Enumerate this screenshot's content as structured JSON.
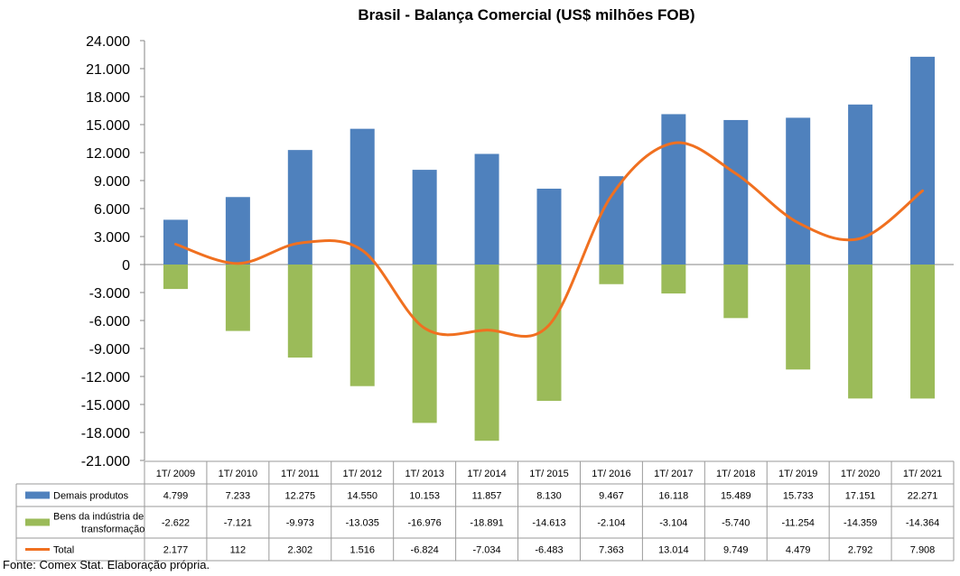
{
  "chart_data": {
    "type": "bar",
    "title": "Brasil - Balança Comercial (US$ milhões FOB)",
    "categories": [
      "1T/ 2009",
      "1T/ 2010",
      "1T/ 2011",
      "1T/ 2012",
      "1T/ 2013",
      "1T/ 2014",
      "1T/ 2015",
      "1T/ 2016",
      "1T/ 2017",
      "1T/ 2018",
      "1T/ 2019",
      "1T/ 2020",
      "1T/ 2021"
    ],
    "yticks": [
      "24.000",
      "21.000",
      "18.000",
      "15.000",
      "12.000",
      "9.000",
      "6.000",
      "3.000",
      "0",
      "-3.000",
      "-6.000",
      "-9.000",
      "-12.000",
      "-15.000",
      "-18.000",
      "-21.000"
    ],
    "ylim": [
      -21000,
      24000
    ],
    "grid": false,
    "series": [
      {
        "name": "Demais produtos",
        "kind": "bar",
        "color": "#4f81bd",
        "values": [
          4799,
          7233,
          12275,
          14550,
          10153,
          11857,
          8130,
          9467,
          16118,
          15489,
          15733,
          17151,
          22271
        ],
        "labels": [
          "4.799",
          "7.233",
          "12.275",
          "14.550",
          "10.153",
          "11.857",
          "8.130",
          "9.467",
          "16.118",
          "15.489",
          "15.733",
          "17.151",
          "22.271"
        ]
      },
      {
        "name": "Bens da indústria de transformação",
        "name_lines": [
          "Bens da indústria de",
          "transformação"
        ],
        "kind": "bar",
        "color": "#9bbb59",
        "values": [
          -2622,
          -7121,
          -9973,
          -13035,
          -16976,
          -18891,
          -14613,
          -2104,
          -3104,
          -5740,
          -11254,
          -14359,
          -14364
        ],
        "labels": [
          "-2.622",
          "-7.121",
          "-9.973",
          "-13.035",
          "-16.976",
          "-18.891",
          "-14.613",
          "-2.104",
          "-3.104",
          "-5.740",
          "-11.254",
          "-14.359",
          "-14.364"
        ]
      },
      {
        "name": "Total",
        "kind": "line",
        "color": "#f07020",
        "values": [
          2177,
          112,
          2302,
          1516,
          -6824,
          -7034,
          -6483,
          7363,
          13014,
          9749,
          4479,
          2792,
          7908
        ],
        "labels": [
          "2.177",
          "112",
          "2.302",
          "1.516",
          "-6.824",
          "-7.034",
          "-6.483",
          "7.363",
          "13.014",
          "9.749",
          "4.479",
          "2.792",
          "7.908"
        ]
      }
    ]
  },
  "source": "Fonte: Comex Stat. Elaboração própria."
}
